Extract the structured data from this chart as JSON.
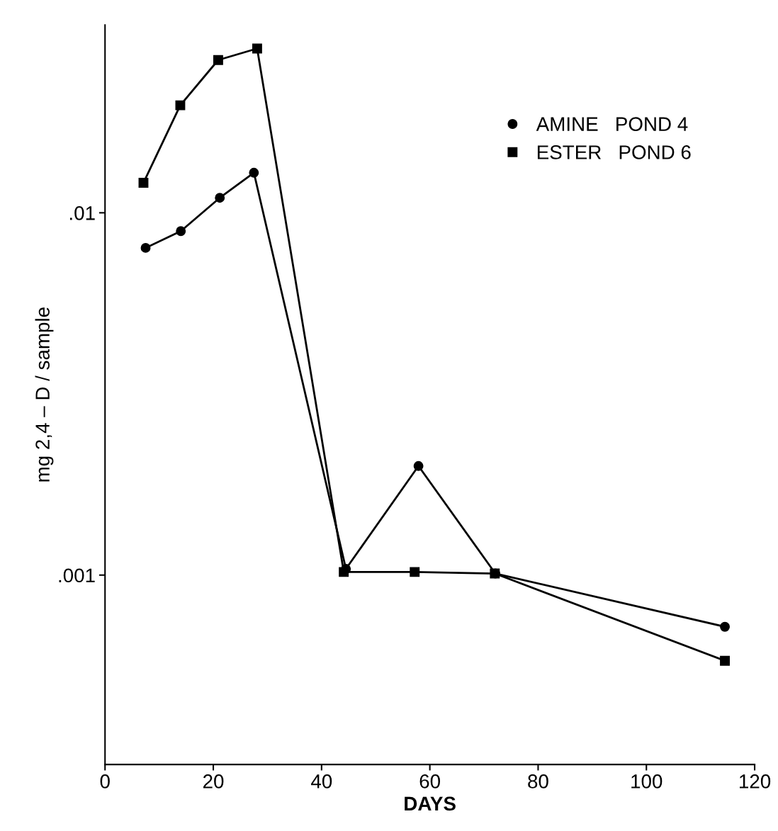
{
  "chart_data": {
    "type": "line",
    "xlabel": "DAYS",
    "ylabel": "mg 2,4 – D / sample",
    "log": "y",
    "xlim": [
      0,
      120
    ],
    "xticks": [
      0,
      20,
      40,
      60,
      80,
      100,
      120
    ],
    "ylim": [
      0.0003,
      0.033
    ],
    "yticks": [
      {
        "value": 0.01,
        "label": ".01"
      },
      {
        "value": 0.001,
        "label": ".001"
      }
    ],
    "legend": "top right",
    "grid": false,
    "series": [
      {
        "name": "AMINE   POND 4",
        "color": "#000000",
        "marker": "circle",
        "x": [
          7.5,
          14,
          21.2,
          27.5,
          44.5,
          57.9,
          72.1,
          114.5
        ],
        "values": [
          0.008,
          0.0089,
          0.011,
          0.0129,
          0.00104,
          0.002,
          0.00101,
          0.00072
        ]
      },
      {
        "name": "ESTER   POND 6",
        "color": "#000000",
        "marker": "square",
        "x": [
          7.1,
          13.9,
          20.9,
          28.1,
          44.1,
          57.2,
          72,
          114.5
        ],
        "values": [
          0.0121,
          0.0198,
          0.0264,
          0.0284,
          0.00102,
          0.00102,
          0.00101,
          0.00058
        ]
      }
    ]
  }
}
